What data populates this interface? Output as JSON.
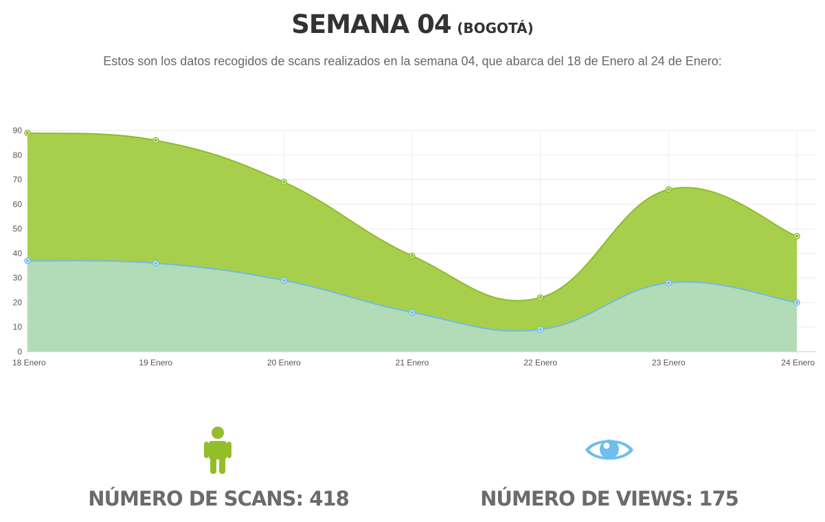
{
  "header": {
    "title": "SEMANA 04",
    "title_suffix": "(BOGOTÁ)",
    "subtitle": "Estos son los datos recogidos de scans realizados en la semana 04, que abarca del 18 de Enero al 24 de Enero:"
  },
  "chart_data": {
    "type": "area",
    "categories": [
      "18 Enero",
      "19 Enero",
      "20 Enero",
      "21 Enero",
      "22 Enero",
      "23 Enero",
      "24 Enero"
    ],
    "series": [
      {
        "values": [
          89,
          86,
          69,
          39,
          22,
          66,
          47
        ],
        "color": "#a8cf4b",
        "line_color": "#8dbb2c"
      },
      {
        "values": [
          37,
          36,
          29,
          16,
          9,
          28,
          20
        ],
        "color": "#b2dbb8",
        "line_color": "#6fbbe8"
      }
    ],
    "ylim": [
      0,
      90
    ],
    "yticks": [
      0,
      10,
      20,
      30,
      40,
      50,
      60,
      70,
      80,
      90
    ],
    "grid": true
  },
  "stats": {
    "scans_label": "NÚMERO DE SCANS: 418",
    "views_label": "NÚMERO DE VIEWS: 175",
    "scans_icon": "person-icon",
    "views_icon": "eye-icon",
    "scans_color": "#93be2a",
    "views_color": "#6ebeee"
  }
}
